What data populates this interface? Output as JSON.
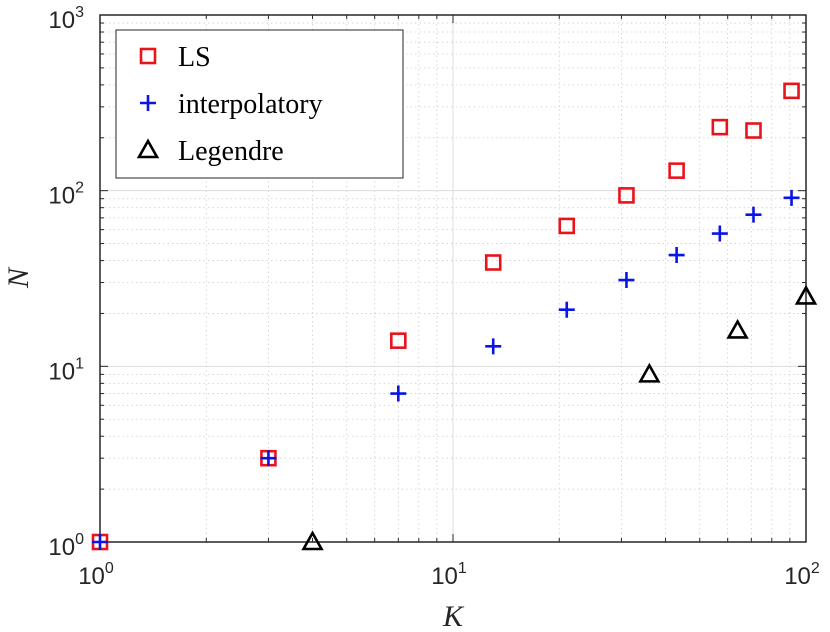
{
  "chart_data": {
    "type": "scatter",
    "xscale": "log",
    "yscale": "log",
    "xlim": [
      1,
      100
    ],
    "ylim": [
      1,
      1000
    ],
    "xlabel": "K",
    "ylabel": "N",
    "grid": true,
    "minor_grid": true,
    "legend_position": "top-left",
    "x_ticks": [
      {
        "base": "10",
        "exp": "0",
        "value": 1
      },
      {
        "base": "10",
        "exp": "1",
        "value": 10
      },
      {
        "base": "10",
        "exp": "2",
        "value": 100
      }
    ],
    "y_ticks": [
      {
        "base": "10",
        "exp": "0",
        "value": 1
      },
      {
        "base": "10",
        "exp": "1",
        "value": 10
      },
      {
        "base": "10",
        "exp": "2",
        "value": 100
      },
      {
        "base": "10",
        "exp": "3",
        "value": 1000
      }
    ],
    "series": [
      {
        "name": "LS",
        "marker": "square",
        "color": "#e8141c",
        "x": [
          1,
          3,
          7,
          13,
          21,
          31,
          43,
          57,
          71,
          91
        ],
        "y": [
          1,
          3,
          14,
          39,
          63,
          94,
          130,
          230,
          220,
          370
        ]
      },
      {
        "name": "interpolatory",
        "marker": "plus",
        "color": "#0a14e6",
        "x": [
          1,
          3,
          7,
          13,
          21,
          31,
          43,
          57,
          71,
          91
        ],
        "y": [
          1,
          3,
          7,
          13,
          21,
          31,
          43,
          57,
          73,
          91
        ]
      },
      {
        "name": "Legendre",
        "marker": "triangle",
        "color": "#000000",
        "x": [
          4,
          36,
          64,
          100
        ],
        "y": [
          1,
          9,
          16,
          25
        ]
      }
    ]
  }
}
